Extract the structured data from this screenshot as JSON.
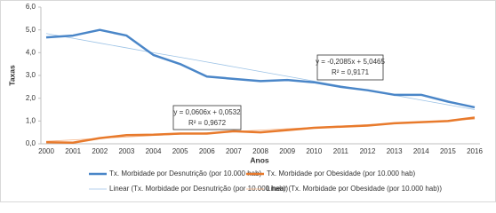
{
  "chart_data": {
    "type": "line",
    "x_label": "Anos",
    "y_label": "Taxas",
    "categories": [
      "2000",
      "2001",
      "2002",
      "2003",
      "2004",
      "2005",
      "2006",
      "2007",
      "2008",
      "2009",
      "2010",
      "2011",
      "2012",
      "2013",
      "2014",
      "2015",
      "2016"
    ],
    "ylim": [
      0,
      6
    ],
    "yticks": [
      {
        "value": 0,
        "label": "0,0"
      },
      {
        "value": 1,
        "label": "1,0"
      },
      {
        "value": 2,
        "label": "2,0"
      },
      {
        "value": 3,
        "label": "3,0"
      },
      {
        "value": 4,
        "label": "4,0"
      },
      {
        "value": 5,
        "label": "5,0"
      },
      {
        "value": 6,
        "label": "6,0"
      }
    ],
    "grid": false,
    "series": [
      {
        "name": "Tx. Morbidade por Desnutrição (por 10.000 hab)",
        "color": "#4a86c8",
        "width": 2.5,
        "values": [
          4.67,
          4.75,
          5.0,
          4.75,
          3.9,
          3.5,
          2.95,
          2.85,
          2.75,
          2.8,
          2.7,
          2.5,
          2.35,
          2.15,
          2.15,
          1.85,
          1.6
        ]
      },
      {
        "name": "Tx. Morbidade por Obesidade (por 10.000 hab)",
        "color": "#e87a2c",
        "width": 2.5,
        "values": [
          0.07,
          0.05,
          0.25,
          0.38,
          0.4,
          0.45,
          0.45,
          0.55,
          0.5,
          0.6,
          0.7,
          0.75,
          0.8,
          0.9,
          0.95,
          1.0,
          1.15
        ]
      },
      {
        "name": "Linear (Tx. Morbidade por Desnutrição (por 10.000 hab))",
        "color": "#9dc3e6",
        "width": 0.8,
        "values": [
          4.84,
          4.63,
          4.42,
          4.21,
          4.0,
          3.8,
          3.59,
          3.38,
          3.17,
          2.96,
          2.75,
          2.54,
          2.34,
          2.13,
          1.92,
          1.71,
          1.5
        ]
      },
      {
        "name": "Linear (Tx. Morbidade por Obesidade (por 10.000 hab))",
        "color": "#f4b183",
        "width": 0.8,
        "values": [
          0.11,
          0.17,
          0.24,
          0.3,
          0.36,
          0.42,
          0.48,
          0.54,
          0.6,
          0.66,
          0.72,
          0.78,
          0.84,
          0.9,
          0.96,
          1.02,
          1.08
        ]
      }
    ],
    "annotations": [
      {
        "lines": [
          "y = -0,2085x + 5,0465",
          "R² = 0,9171"
        ]
      },
      {
        "lines": [
          "y = 0,0606x + 0,0532",
          "R² = 0,9672"
        ]
      }
    ]
  }
}
